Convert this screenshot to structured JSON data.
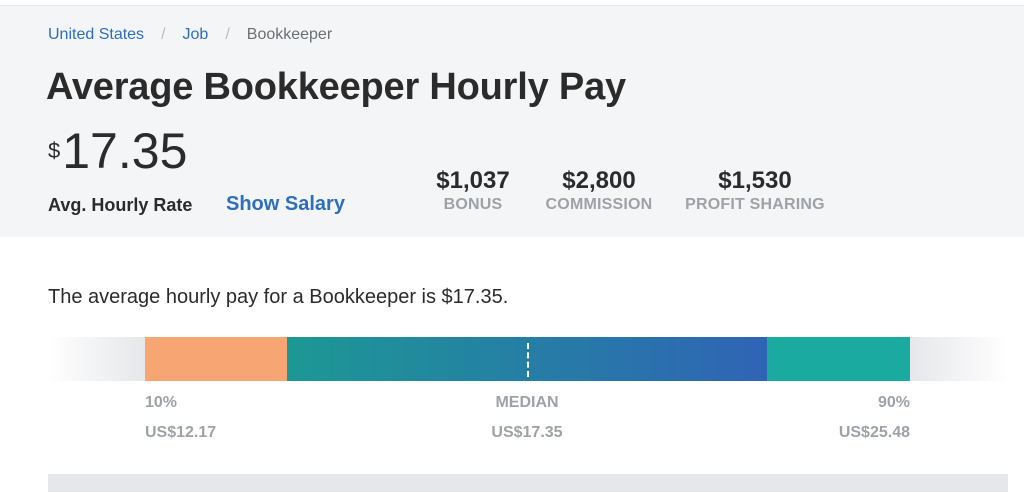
{
  "breadcrumb": [
    {
      "label": "United States"
    },
    {
      "label": "Job"
    },
    {
      "label": "Bookkeeper"
    }
  ],
  "page_title": "Average Bookkeeper Hourly Pay",
  "average": {
    "currency_symbol": "$",
    "value": "17.35",
    "label": "Avg. Hourly Rate"
  },
  "show_salary_label": "Show Salary",
  "extra_comp": [
    {
      "value": "$1,037",
      "label": "BONUS"
    },
    {
      "value": "$2,800",
      "label": "COMMISSION"
    },
    {
      "value": "$1,530",
      "label": "PROFIT SHARING"
    }
  ],
  "description": "The average hourly pay for a Bookkeeper is $17.35.",
  "pay_range": {
    "low": {
      "label": "10%",
      "value": "US$12.17"
    },
    "median": {
      "label": "MEDIAN",
      "value": "US$17.35"
    },
    "high": {
      "label": "90%",
      "value": "US$25.48"
    }
  },
  "colors": {
    "low_segment": "#f7a673",
    "mid_segment_start": "#1c9894",
    "mid_segment_end": "#2f64b5",
    "high_segment": "#1aaa9f",
    "link": "#2d6fbd"
  }
}
